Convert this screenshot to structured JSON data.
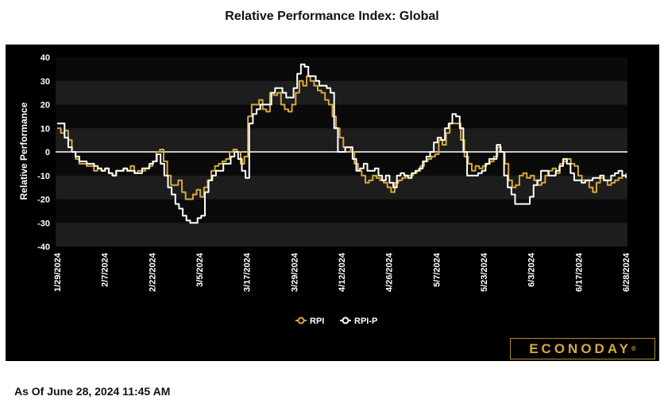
{
  "title": "Relative Performance Index: Global",
  "as_of": "As Of June 28, 2024 11:45 AM",
  "brand": {
    "name": "ECONODAY",
    "mark": "®",
    "accent": "#d6a93c"
  },
  "chart_data": {
    "type": "line",
    "ylabel": "Relative Performance",
    "ylim": [
      -40,
      40
    ],
    "y_ticks": [
      40,
      30,
      20,
      10,
      0,
      -10,
      -20,
      -30,
      -40
    ],
    "x_ticks": [
      "1/29/2024",
      "2/7/2024",
      "2/22/2024",
      "3/5/2024",
      "3/17/2024",
      "3/29/2024",
      "4/12/2024",
      "4/26/2024",
      "5/7/2024",
      "5/23/2024",
      "6/3/2024",
      "6/17/2024",
      "6/28/2024"
    ],
    "legend": "bottom-center",
    "series": [
      {
        "name": "RPI",
        "color": "#d6a93c",
        "values": [
          10,
          8,
          9,
          5,
          0,
          -3,
          -5,
          -5,
          -6,
          -6,
          -8,
          -7,
          -8,
          -7,
          -9,
          -10,
          -8,
          -8,
          -7,
          -8,
          -6,
          -9,
          -8,
          -8,
          -7,
          -6,
          -4,
          0,
          1,
          -4,
          -10,
          -14,
          -14,
          -12,
          -17,
          -20,
          -20,
          -18,
          -16,
          -19,
          -15,
          -12,
          -8,
          -6,
          -5,
          -4,
          -3,
          0,
          1,
          0,
          -5,
          -2,
          15,
          20,
          20,
          22,
          18,
          17,
          25,
          24,
          25,
          20,
          18,
          17,
          20,
          25,
          30,
          28,
          32,
          30,
          28,
          26,
          25,
          22,
          20,
          15,
          10,
          6,
          2,
          2,
          0,
          -5,
          -8,
          -10,
          -13,
          -12,
          -10,
          -11,
          -12,
          -13,
          -15,
          -17,
          -13,
          -12,
          -11,
          -10,
          -10,
          -9,
          -8,
          -6,
          -4,
          -3,
          -2,
          -1,
          5,
          3,
          8,
          12,
          12,
          12,
          5,
          -2,
          -5,
          -8,
          -6,
          -7,
          -6,
          -5,
          -4,
          -2,
          2,
          0,
          -5,
          -12,
          -15,
          -14,
          -10,
          -9,
          -11,
          -10,
          -12,
          -14,
          -13,
          -10,
          -8,
          -7,
          -9,
          -5,
          -4,
          -3,
          -5,
          -6,
          -10,
          -12,
          -12,
          -15,
          -17,
          -13,
          -11,
          -12,
          -14,
          -13,
          -12,
          -11,
          -10,
          -9
        ]
      },
      {
        "name": "RPI-P",
        "color": "#ffffff",
        "values": [
          12,
          12,
          6,
          2,
          0,
          -2,
          -4,
          -4,
          -5,
          -5,
          -6,
          -7,
          -8,
          -7,
          -9,
          -10,
          -8,
          -8,
          -7,
          -8,
          -8,
          -9,
          -9,
          -7,
          -7,
          -5,
          -4,
          -1,
          -5,
          -10,
          -15,
          -18,
          -22,
          -24,
          -27,
          -29,
          -30,
          -30,
          -28,
          -27,
          -17,
          -12,
          -10,
          -8,
          -8,
          -5,
          -5,
          -2,
          0,
          -3,
          -8,
          -11,
          12,
          16,
          18,
          20,
          20,
          20,
          25,
          27,
          27,
          25,
          23,
          23,
          27,
          33,
          37,
          36,
          32,
          32,
          30,
          28,
          28,
          27,
          25,
          10,
          0,
          0,
          2,
          2,
          -3,
          -8,
          -7,
          -5,
          -8,
          -8,
          -7,
          -10,
          -12,
          -10,
          -13,
          -15,
          -10,
          -9,
          -10,
          -11,
          -9,
          -8,
          -7,
          -4,
          -2,
          0,
          4,
          6,
          5,
          10,
          12,
          16,
          15,
          10,
          0,
          -10,
          -10,
          -10,
          -9,
          -8,
          -5,
          -3,
          -3,
          3,
          0,
          -10,
          -15,
          -18,
          -22,
          -22,
          -22,
          -22,
          -19,
          -14,
          -12,
          -8,
          -8,
          -10,
          -10,
          -8,
          -6,
          -3,
          -5,
          -9,
          -12,
          -12,
          -13,
          -12,
          -12,
          -11,
          -11,
          -10,
          -12,
          -12,
          -10,
          -9,
          -8,
          -10,
          -11
        ]
      }
    ]
  }
}
